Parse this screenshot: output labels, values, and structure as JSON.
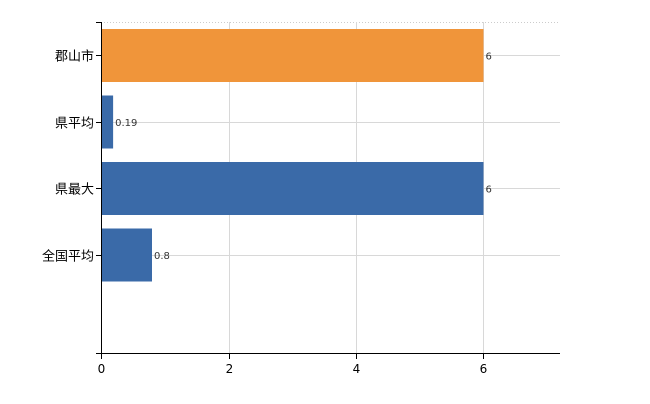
{
  "chart_data": {
    "type": "bar",
    "orientation": "horizontal",
    "categories": [
      "郡山市",
      "県平均",
      "県最大",
      "全国平均"
    ],
    "values": [
      6,
      0.19,
      6,
      0.8
    ],
    "value_labels": [
      "6",
      "0.19",
      "6",
      "0.8"
    ],
    "bar_colors": [
      "#f0953a",
      "#3a6aa8",
      "#3a6aa8",
      "#3a6aa8"
    ],
    "x_ticks": [
      0,
      2,
      4,
      6
    ],
    "xlim": [
      0,
      7.2
    ],
    "grid": true,
    "title": "",
    "xlabel": "",
    "ylabel": ""
  }
}
